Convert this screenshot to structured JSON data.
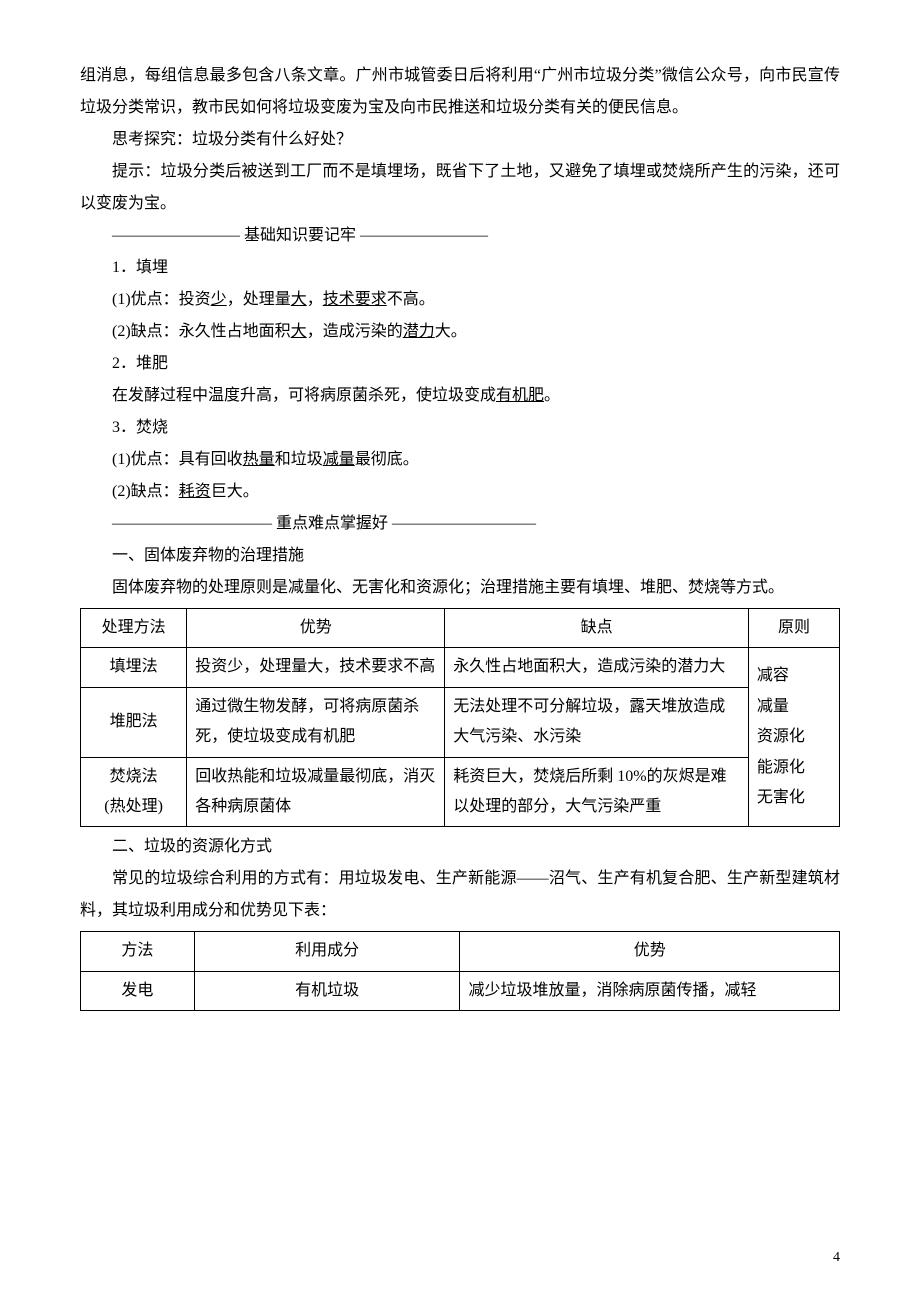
{
  "paragraphs": {
    "p1": "组消息，每组信息最多包含八条文章。广州市城管委日后将利用“广州市垃圾分类”微信公众号，向市民宣传垃圾分类常识，教市民如何将垃圾变废为宝及向市民推送和垃圾分类有关的便民信息。",
    "p2": "思考探究：垃圾分类有什么好处？",
    "p3": "提示：垃圾分类后被送到工厂而不是填埋场，既省下了土地，又避免了填埋或焚烧所产生的污染，还可以变废为宝。",
    "divider1_pre": "———————— 基础知识要记牢 ————————",
    "p4": "1．填埋",
    "p5_pre": "(1)优点：投资",
    "p5_u1": "少",
    "p5_mid1": "，处理量",
    "p5_u2": "大",
    "p5_mid2": "，",
    "p5_u3": "技术要求",
    "p5_end": "不高。",
    "p6_pre": "(2)缺点：永久性占地面积",
    "p6_u1": "大",
    "p6_mid": "，造成污染的",
    "p6_u2": "潜力",
    "p6_end": "大。",
    "p7": "2．堆肥",
    "p8_pre": "在发酵过程中温度升高，可将病原菌杀死，使垃圾变成",
    "p8_u1": "有机肥",
    "p8_end": "。",
    "p9": "3．焚烧",
    "p10_pre": "(1)优点：具有回收",
    "p10_u1": "热量",
    "p10_mid": "和垃圾",
    "p10_u2": "减量",
    "p10_end": "最彻底。",
    "p11_pre": "(2)缺点：",
    "p11_u1": "耗资",
    "p11_end": "巨大。",
    "divider2": "—————————— 重点难点掌握好 —————————",
    "p12": "一、固体废弃物的治理措施",
    "p13": "固体废弃物的处理原则是减量化、无害化和资源化；治理措施主要有填埋、堆肥、焚烧等方式。",
    "p14": "二、垃圾的资源化方式",
    "p15": "常见的垃圾综合利用的方式有：用垃圾发电、生产新能源——沼气、生产有机复合肥、生产新型建筑材料，其垃圾利用成分和优势见下表："
  },
  "table1": {
    "header": {
      "c1": "处理方法",
      "c2": "优势",
      "c3": "缺点",
      "c4": "原则"
    },
    "r1": {
      "c1": "填埋法",
      "c2": "投资少，处理量大，技术要求不高",
      "c3": "永久性占地面积大，造成污染的潜力大"
    },
    "r2": {
      "c1": "堆肥法",
      "c2": "通过微生物发酵，可将病原菌杀死，使垃圾变成有机肥",
      "c3": "无法处理不可分解垃圾，露天堆放造成大气污染、水污染"
    },
    "r3": {
      "c1": "焚烧法\n(热处理)",
      "c2": "回收热能和垃圾减量最彻底，消灭各种病原菌体",
      "c3": "耗资巨大，焚烧后所剩 10%的灰烬是难以处理的部分，大气污染严重"
    },
    "col4": "减容\n减量\n资源化\n能源化\n无害化"
  },
  "table2": {
    "header": {
      "c1": "方法",
      "c2": "利用成分",
      "c3": "优势"
    },
    "r1": {
      "c1": "发电",
      "c2": "有机垃圾",
      "c3": "减少垃圾堆放量，消除病原菌传播，减轻"
    }
  },
  "page_number": "4"
}
